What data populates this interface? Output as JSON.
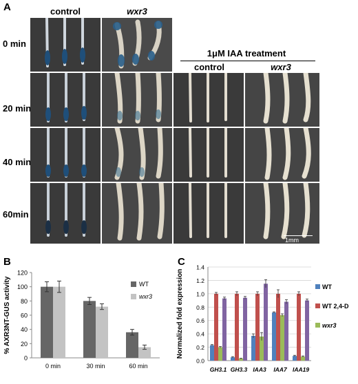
{
  "panelA": {
    "letter": "A",
    "col_control": "control",
    "col_wxr3": "wxr3",
    "treatment_title": "1μM IAA treatment",
    "treat_control": "control",
    "treat_wxr3": "wxr3",
    "rows": [
      "0 min",
      "20 min",
      "40 min",
      "60min"
    ],
    "scale": "1mm"
  },
  "panelB": {
    "letter": "B",
    "chart_data": {
      "type": "bar",
      "categories": [
        "0 min",
        "30 min",
        "60 min"
      ],
      "series": [
        {
          "name": "WT",
          "values": [
            100,
            80,
            36
          ],
          "errors": [
            7,
            5,
            4
          ],
          "color": "#666666"
        },
        {
          "name": "wxr3",
          "values": [
            100,
            72,
            15
          ],
          "errors": [
            8,
            4,
            3
          ],
          "color": "#c3c3c3"
        }
      ],
      "ylabel": "% AXR3NT-GUS activity",
      "ylim": [
        0,
        120
      ],
      "yticks": [
        0,
        20,
        40,
        60,
        80,
        100,
        120
      ],
      "legend": "top-right"
    }
  },
  "panelC": {
    "letter": "C",
    "chart_data": {
      "type": "bar",
      "categories": [
        "GH3.1",
        "GH3.3",
        "IAA3",
        "IAA7",
        "IAA19"
      ],
      "series": [
        {
          "name": "WT",
          "values": [
            0.23,
            0.05,
            0.37,
            0.72,
            0.07
          ],
          "errors": [
            0.01,
            0.01,
            0.03,
            0.01,
            0.01
          ],
          "color": "#4f81bd"
        },
        {
          "name": "WT 2,4-D",
          "values": [
            1.0,
            1.0,
            1.0,
            1.0,
            1.0
          ],
          "errors": [
            0.02,
            0.03,
            0.03,
            0.06,
            0.03
          ],
          "color": "#c0504d"
        },
        {
          "name": "wxr3",
          "values": [
            0.2,
            0.03,
            0.36,
            0.68,
            0.06
          ],
          "errors": [
            0.01,
            0.005,
            0.06,
            0.02,
            0.01
          ],
          "color": "#9bbb59"
        },
        {
          "name": "",
          "values": [
            0.93,
            0.94,
            1.15,
            0.88,
            0.9
          ],
          "errors": [
            0.02,
            0.02,
            0.06,
            0.03,
            0.02
          ],
          "color": "#8064a2"
        }
      ],
      "ylabel": "Normalized fold expression",
      "ylim": [
        0,
        1.4
      ],
      "yticks": [
        "0.0",
        "0.2",
        "0.4",
        "0.6",
        "0.8",
        "1.0",
        "1.2",
        "1.4"
      ],
      "legend": "right"
    }
  },
  "colors": {
    "photo_bg": "#3a3a3a",
    "gus_blue": "#1f4f7a",
    "root_white": "#e6e2d6"
  }
}
